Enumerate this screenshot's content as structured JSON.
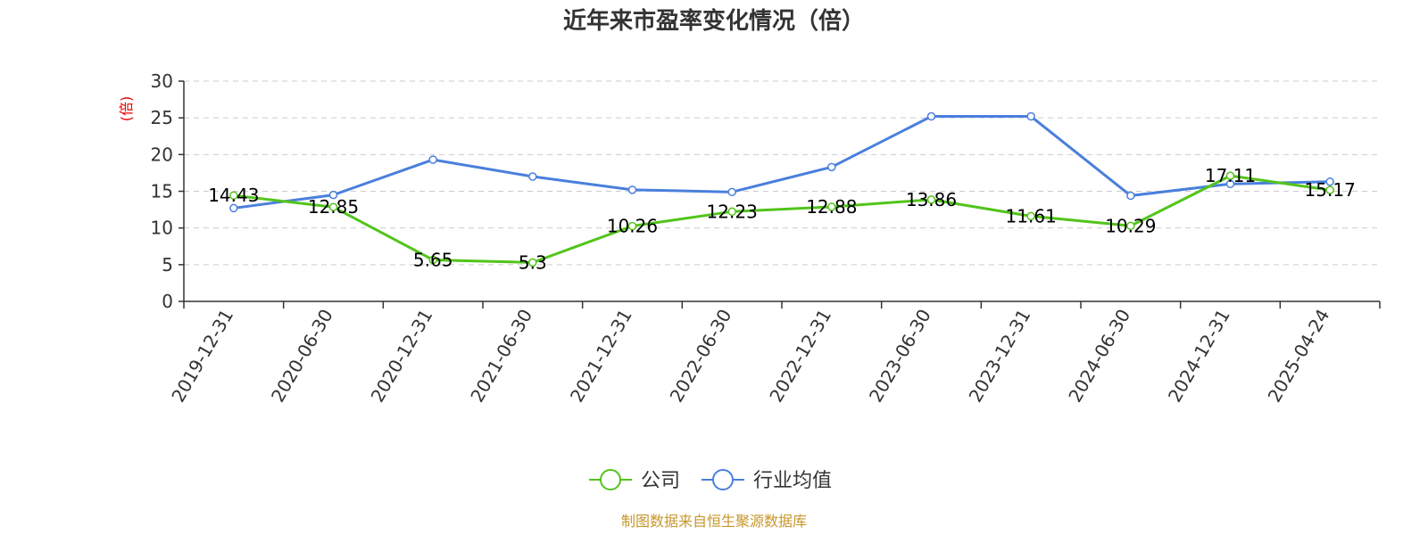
{
  "chart_data": {
    "type": "line",
    "title": "近年来市盈率变化情况（倍）",
    "xlabel": "",
    "ylabel": "(倍)",
    "categories": [
      "2019-12-31",
      "2020-06-30",
      "2020-12-31",
      "2021-06-30",
      "2021-12-31",
      "2022-06-30",
      "2022-12-31",
      "2023-06-30",
      "2023-12-31",
      "2024-06-30",
      "2024-12-31",
      "2025-04-24"
    ],
    "ylim": [
      0,
      30
    ],
    "yticks": [
      0,
      5,
      10,
      15,
      20,
      25,
      30
    ],
    "grid": true,
    "legend_position": "bottom-center",
    "series": [
      {
        "name": "公司",
        "color": "#52c41a",
        "values": [
          14.43,
          12.85,
          5.65,
          5.3,
          10.26,
          12.23,
          12.88,
          13.86,
          11.61,
          10.29,
          17.11,
          15.17
        ],
        "labels": [
          "14.43",
          "12.85",
          "5.65",
          "5.3",
          "10.26",
          "12.23",
          "12.88",
          "13.86",
          "11.61",
          "10.29",
          "17.11",
          "15.17"
        ]
      },
      {
        "name": "行业均值",
        "color": "#4a7fdc",
        "values": [
          12.7,
          14.5,
          19.3,
          17.0,
          15.2,
          14.9,
          18.3,
          25.2,
          25.2,
          14.4,
          16.0,
          16.3
        ]
      }
    ]
  },
  "source_text": "制图数据来自恒生聚源数据库"
}
